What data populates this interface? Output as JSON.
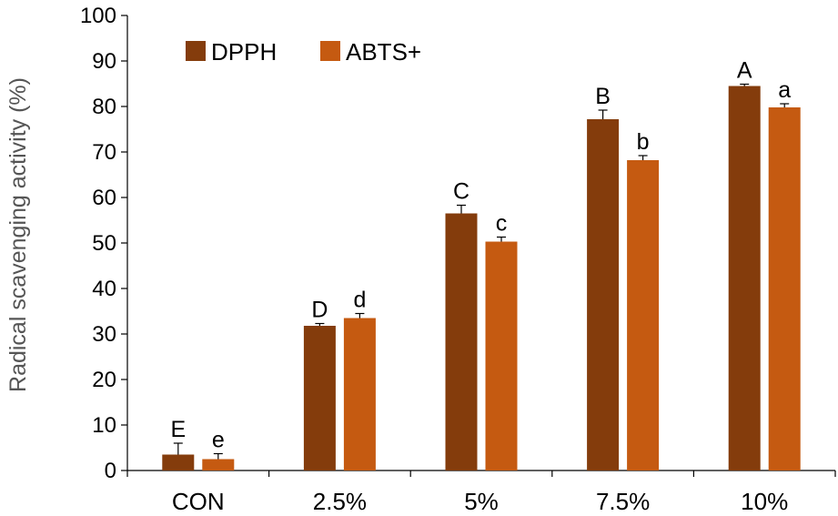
{
  "chart_data": {
    "type": "bar",
    "title": "",
    "xlabel": "",
    "ylabel": "Radical scavenging activity (%)",
    "ylim": [
      0,
      100
    ],
    "yticks": [
      0,
      10,
      20,
      30,
      40,
      50,
      60,
      70,
      80,
      90,
      100
    ],
    "categories": [
      "CON",
      "2.5%",
      "5%",
      "7.5%",
      "10%"
    ],
    "legend_position": "top-left",
    "grid": false,
    "series": [
      {
        "name": "DPPH",
        "color": "#843C0C",
        "values": [
          3.5,
          31.8,
          56.5,
          77.2,
          84.5
        ],
        "errors": [
          2.5,
          0.5,
          1.8,
          2.0,
          0.4
        ],
        "labels": [
          "E",
          "D",
          "C",
          "B",
          "A"
        ]
      },
      {
        "name": "ABTS+",
        "color": "#C55A11",
        "values": [
          2.5,
          33.5,
          50.3,
          68.2,
          79.8
        ],
        "errors": [
          1.2,
          1.0,
          1.0,
          1.0,
          0.8
        ],
        "labels": [
          "e",
          "d",
          "c",
          "b",
          "a"
        ]
      }
    ]
  }
}
